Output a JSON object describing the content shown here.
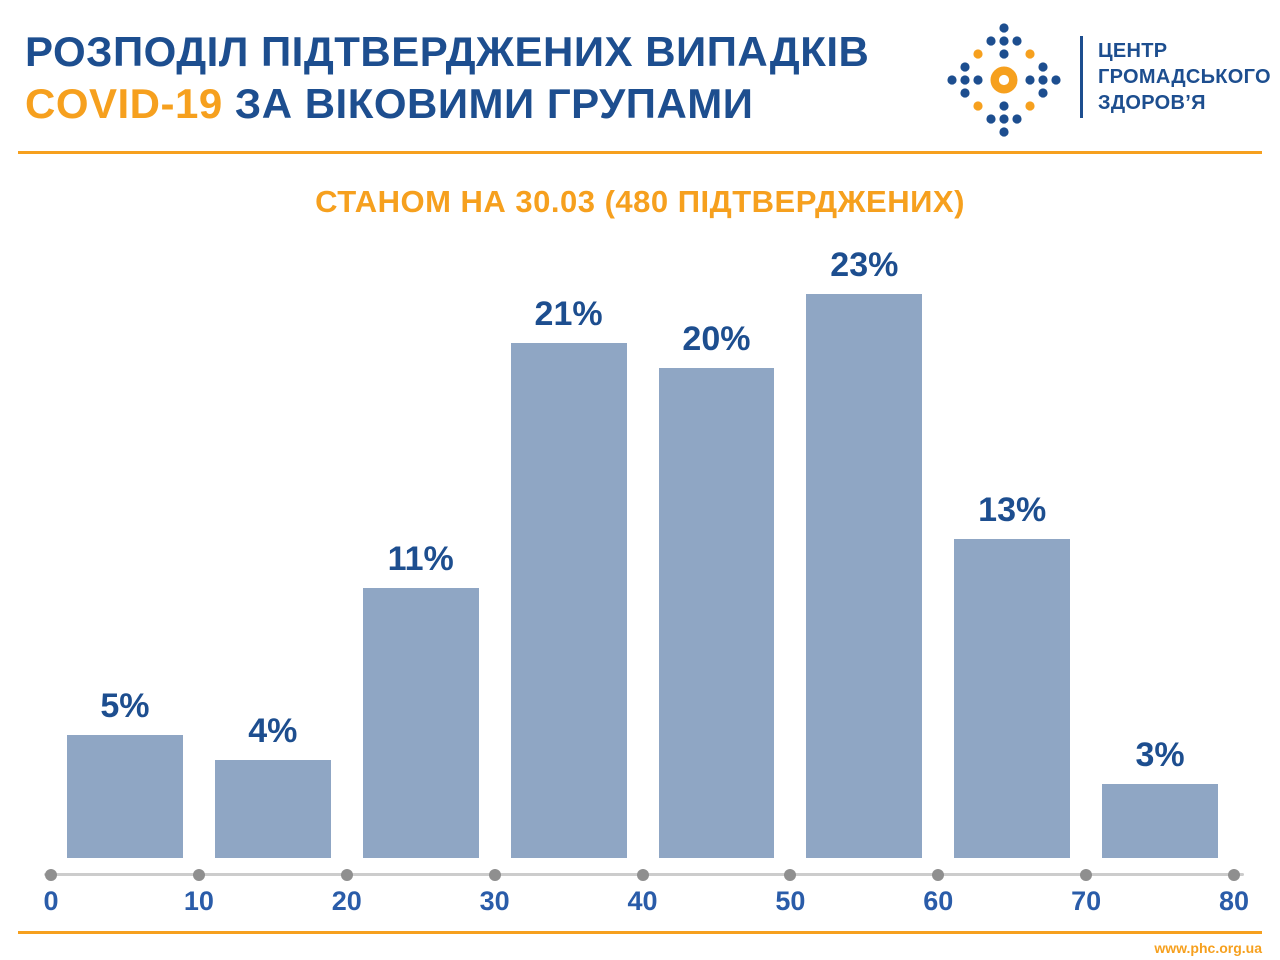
{
  "header": {
    "title_line1": "РОЗПОДІЛ ПІДТВЕРДЖЕНИХ ВИПАДКІВ",
    "title_highlight": "COVID-19",
    "title_line2": "ЗА ВІКОВИМИ ГРУПАМИ"
  },
  "logo": {
    "icon": "phc-dots-logo",
    "lines": [
      "ЦЕНТР",
      "ГРОМАДСЬКОГО",
      "ЗДОРОВ’Я"
    ]
  },
  "subtitle": "СТАНОМ НА 30.03 (480 ПІДТВЕРДЖЕНИХ)",
  "chart_data": {
    "type": "bar",
    "title": "СТАНОМ НА 30.03 (480 ПІДТВЕРДЖЕНИХ)",
    "categories": [
      "0–10",
      "10–20",
      "20–30",
      "30–40",
      "40–50",
      "50–60",
      "60–70",
      "70–80"
    ],
    "values": [
      5,
      4,
      11,
      21,
      20,
      23,
      13,
      3
    ],
    "value_labels": [
      "5%",
      "4%",
      "11%",
      "21%",
      "20%",
      "23%",
      "13%",
      "3%"
    ],
    "x_tick_labels": [
      "0",
      "10",
      "20",
      "30",
      "40",
      "50",
      "60",
      "70",
      "80"
    ],
    "xlabel": "",
    "ylabel": "",
    "ylim": [
      0,
      25
    ],
    "grid": false,
    "legend": "none",
    "unit": "percent"
  },
  "footer": {
    "url": "www.phc.org.ua"
  },
  "colors": {
    "brand_blue": "#1d4e8f",
    "tick_blue": "#2a5ca9",
    "bar_blue": "#8fa6c4",
    "accent_orange": "#f6a01e",
    "axis_gray": "#cccccc",
    "dot_gray": "#8f8f8f"
  }
}
